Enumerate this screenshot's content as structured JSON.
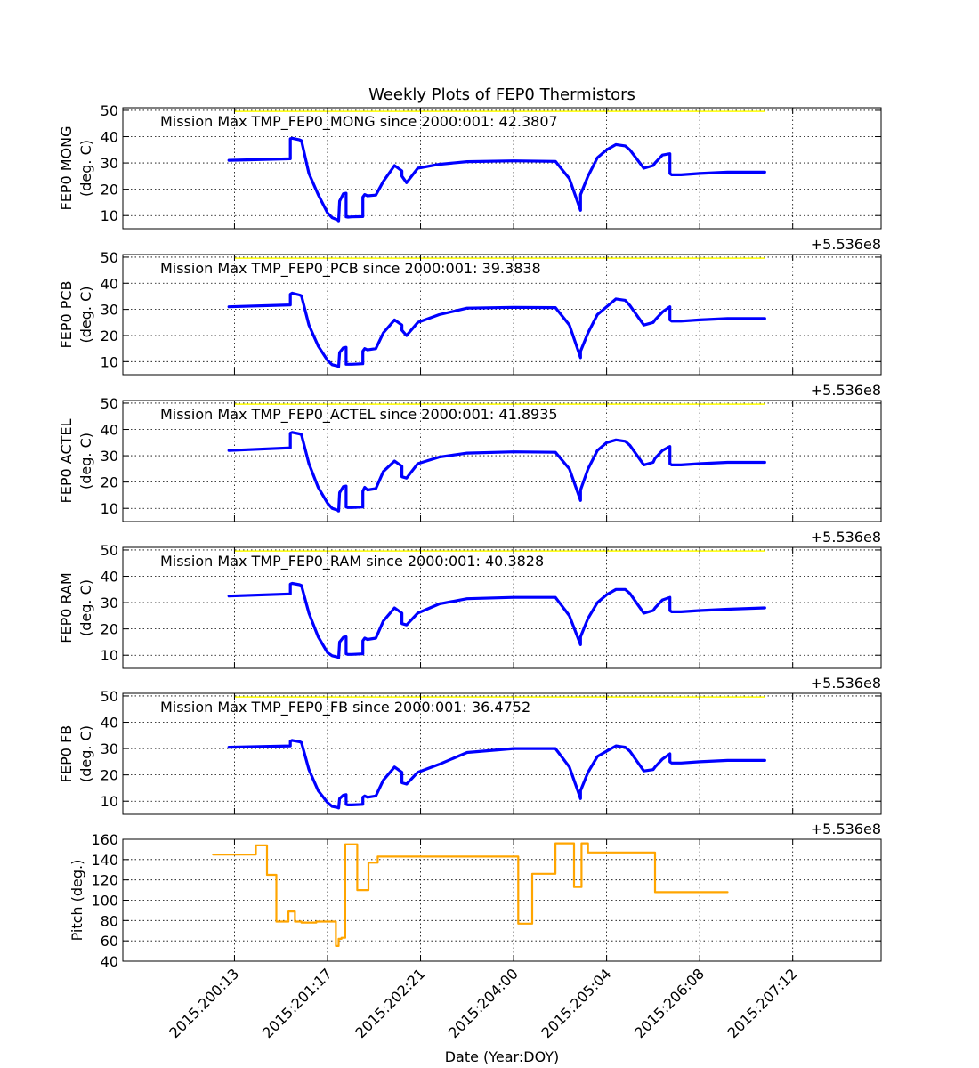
{
  "figure": {
    "title": "Weekly Plots of FEP0 Thermistors",
    "xlabel": "Date (Year:DOY)",
    "offset_label": "+5.536e8",
    "x_tick_labels": [
      "2015:200:13",
      "2015:201:17",
      "2015:202:21",
      "2015:204:00",
      "2015:205:04",
      "2015:206:08",
      "2015:207:12"
    ],
    "x_tick_values": [
      0,
      1,
      2,
      3,
      4,
      5,
      6
    ]
  },
  "colors": {
    "temperature": "#0000ff",
    "pitch": "#ffa500",
    "limit": "#ffff00",
    "grid": "#000000"
  },
  "chart_data": [
    {
      "type": "line",
      "ylabel": "FEP0 MONG\n(deg. C)",
      "annotation": "Mission Max TMP_FEP0_MONG since 2000:001: 42.3807",
      "ylim": [
        5,
        51
      ],
      "yticks": [
        10,
        20,
        30,
        40,
        50
      ],
      "limit_line": {
        "y": 49.6,
        "x_range": [
          0.0,
          5.7
        ]
      },
      "series": [
        {
          "x": [
            -0.06,
            0.6,
            0.6,
            0.62,
            0.7,
            0.72,
            0.8,
            0.9,
            1.0,
            1.05,
            1.12,
            1.12,
            1.13,
            1.17,
            1.2,
            1.2,
            1.22,
            1.26,
            1.38,
            1.38,
            1.4,
            1.43,
            1.52,
            1.6,
            1.72,
            1.8,
            1.8,
            1.85,
            1.97,
            2.2,
            2.5,
            3.0,
            3.45,
            3.6,
            3.72,
            3.72,
            3.8,
            3.9,
            4.0,
            4.1,
            4.2,
            4.25,
            4.4,
            4.5,
            4.52,
            4.6,
            4.68,
            4.68,
            4.7,
            4.8,
            5.0,
            5.3,
            5.7
          ],
          "values": [
            31.0,
            31.6,
            39.2,
            39.4,
            38.8,
            38.5,
            26,
            18,
            11,
            9.2,
            8.2,
            8.0,
            15.5,
            18.3,
            18.5,
            9.5,
            9.4,
            9.5,
            9.6,
            17,
            18,
            17.5,
            17.8,
            23,
            29,
            27,
            25,
            22.5,
            28,
            29.5,
            30.5,
            30.8,
            30.6,
            24,
            12,
            18,
            25,
            32,
            35,
            37,
            36.5,
            35,
            28,
            29,
            30,
            33,
            33.5,
            26,
            25.5,
            25.5,
            26,
            26.5,
            26.5
          ]
        }
      ]
    },
    {
      "type": "line",
      "ylabel": "FEP0 PCB\n(deg. C)",
      "annotation": "Mission Max TMP_FEP0_PCB since 2000:001: 39.3838",
      "ylim": [
        5,
        51
      ],
      "yticks": [
        10,
        20,
        30,
        40,
        50
      ],
      "limit_line": {
        "y": 49.6,
        "x_range": [
          0.0,
          5.7
        ]
      },
      "series": [
        {
          "x": [
            -0.06,
            0.6,
            0.6,
            0.62,
            0.7,
            0.72,
            0.8,
            0.9,
            1.0,
            1.05,
            1.12,
            1.12,
            1.13,
            1.17,
            1.2,
            1.2,
            1.22,
            1.26,
            1.38,
            1.38,
            1.4,
            1.43,
            1.52,
            1.6,
            1.72,
            1.8,
            1.8,
            1.85,
            1.97,
            2.2,
            2.5,
            3.0,
            3.45,
            3.6,
            3.72,
            3.72,
            3.8,
            3.9,
            4.0,
            4.1,
            4.2,
            4.25,
            4.4,
            4.5,
            4.52,
            4.6,
            4.68,
            4.68,
            4.7,
            4.8,
            5.0,
            5.3,
            5.7
          ],
          "values": [
            31.0,
            31.7,
            35.8,
            36.2,
            35.5,
            35.2,
            24,
            16,
            10.5,
            8.8,
            8.2,
            8.0,
            13.5,
            15.3,
            15.5,
            9.0,
            9.0,
            9.0,
            9.2,
            14,
            15,
            14.5,
            15,
            21,
            26,
            24,
            22,
            20,
            25,
            28,
            30.5,
            30.8,
            30.7,
            24,
            11.5,
            14,
            21,
            28,
            31,
            34,
            33.5,
            31.5,
            24,
            25,
            26,
            29,
            31,
            26,
            25.5,
            25.5,
            26,
            26.5,
            26.5
          ]
        }
      ]
    },
    {
      "type": "line",
      "ylabel": "FEP0 ACTEL\n(deg. C)",
      "annotation": "Mission Max TMP_FEP0_ACTEL since 2000:001: 41.8935",
      "ylim": [
        5,
        51
      ],
      "yticks": [
        10,
        20,
        30,
        40,
        50
      ],
      "limit_line": {
        "y": 49.6,
        "x_range": [
          0.0,
          5.7
        ]
      },
      "series": [
        {
          "x": [
            -0.06,
            0.6,
            0.6,
            0.62,
            0.7,
            0.72,
            0.8,
            0.9,
            1.0,
            1.05,
            1.12,
            1.12,
            1.13,
            1.17,
            1.2,
            1.2,
            1.22,
            1.26,
            1.38,
            1.38,
            1.4,
            1.43,
            1.52,
            1.6,
            1.72,
            1.8,
            1.8,
            1.85,
            1.97,
            2.2,
            2.5,
            3.0,
            3.45,
            3.6,
            3.72,
            3.72,
            3.8,
            3.9,
            4.0,
            4.1,
            4.2,
            4.25,
            4.4,
            4.5,
            4.52,
            4.6,
            4.68,
            4.68,
            4.7,
            4.8,
            5.0,
            5.3,
            5.7
          ],
          "values": [
            32.0,
            33.0,
            38.6,
            38.9,
            38.3,
            38.0,
            27,
            18,
            12,
            10,
            9.2,
            9.0,
            16,
            18.3,
            18.5,
            10.5,
            10.3,
            10.3,
            10.5,
            16.5,
            18,
            17,
            17.5,
            24,
            28,
            26,
            22,
            21.5,
            27,
            29.5,
            31.0,
            31.5,
            31.3,
            25,
            13,
            17,
            25,
            32,
            35,
            36,
            35.5,
            34,
            26.5,
            27.5,
            29,
            32,
            33.5,
            27,
            26.5,
            26.5,
            27,
            27.5,
            27.5
          ]
        }
      ]
    },
    {
      "type": "line",
      "ylabel": "FEP0 RAM\n(deg. C)",
      "annotation": "Mission Max TMP_FEP0_RAM since 2000:001: 40.3828",
      "ylim": [
        5,
        51
      ],
      "yticks": [
        10,
        20,
        30,
        40,
        50
      ],
      "limit_line": {
        "y": 49.6,
        "x_range": [
          0.0,
          5.7
        ]
      },
      "series": [
        {
          "x": [
            -0.06,
            0.6,
            0.6,
            0.62,
            0.7,
            0.72,
            0.8,
            0.9,
            1.0,
            1.05,
            1.12,
            1.12,
            1.13,
            1.17,
            1.2,
            1.2,
            1.22,
            1.26,
            1.38,
            1.38,
            1.4,
            1.43,
            1.52,
            1.6,
            1.72,
            1.8,
            1.8,
            1.85,
            1.97,
            2.2,
            2.5,
            3.0,
            3.45,
            3.6,
            3.72,
            3.72,
            3.8,
            3.9,
            4.0,
            4.1,
            4.2,
            4.25,
            4.4,
            4.5,
            4.52,
            4.6,
            4.68,
            4.68,
            4.7,
            4.8,
            5.0,
            5.3,
            5.7
          ],
          "values": [
            32.5,
            33.3,
            37.0,
            37.3,
            36.8,
            36.5,
            26,
            17,
            11,
            9.8,
            9.2,
            9.0,
            15,
            16.8,
            17,
            10.5,
            10.3,
            10.3,
            10.5,
            15.5,
            16.5,
            16,
            16.5,
            23,
            28,
            26,
            22,
            21.5,
            26,
            29.5,
            31.5,
            32.0,
            32.0,
            25,
            14,
            17,
            24,
            30,
            33,
            35,
            35,
            33.5,
            26,
            27,
            28,
            31,
            32,
            27,
            26.5,
            26.5,
            27,
            27.5,
            28
          ]
        }
      ]
    },
    {
      "type": "line",
      "ylabel": "FEP0 FB\n(deg. C)",
      "annotation": "Mission Max TMP_FEP0_FB since 2000:001: 36.4752",
      "ylim": [
        5,
        51
      ],
      "yticks": [
        10,
        20,
        30,
        40,
        50
      ],
      "limit_line": {
        "y": 49.6,
        "x_range": [
          0.0,
          5.7
        ]
      },
      "series": [
        {
          "x": [
            -0.06,
            0.6,
            0.6,
            0.62,
            0.7,
            0.72,
            0.8,
            0.9,
            1.0,
            1.05,
            1.12,
            1.12,
            1.13,
            1.17,
            1.2,
            1.2,
            1.22,
            1.26,
            1.38,
            1.38,
            1.4,
            1.43,
            1.52,
            1.6,
            1.72,
            1.8,
            1.8,
            1.85,
            1.97,
            2.2,
            2.5,
            3.0,
            3.45,
            3.6,
            3.72,
            3.72,
            3.8,
            3.9,
            4.0,
            4.1,
            4.2,
            4.25,
            4.4,
            4.5,
            4.52,
            4.6,
            4.68,
            4.68,
            4.7,
            4.8,
            5.0,
            5.3,
            5.7
          ],
          "values": [
            30.5,
            31.0,
            32.8,
            33.1,
            32.6,
            32.3,
            22,
            14,
            9.5,
            8.0,
            7.5,
            7.4,
            11,
            12.3,
            12.5,
            8.8,
            8.6,
            8.6,
            8.8,
            11.5,
            12,
            11.5,
            12,
            18,
            23,
            21,
            17,
            16.5,
            21,
            24,
            28.5,
            30.0,
            30.0,
            23,
            11,
            14,
            21,
            27,
            29,
            31,
            30.5,
            29,
            21.5,
            22,
            23,
            26,
            28,
            25,
            24.5,
            24.5,
            25,
            25.5,
            25.5
          ]
        }
      ]
    },
    {
      "type": "line",
      "ylabel": "Pitch (deg.)",
      "ylim": [
        40,
        160
      ],
      "yticks": [
        40,
        60,
        80,
        100,
        120,
        140,
        160
      ],
      "series": [
        {
          "x": [
            -0.23,
            0.23,
            0.23,
            0.35,
            0.35,
            0.45,
            0.45,
            0.58,
            0.58,
            0.65,
            0.65,
            0.72,
            0.72,
            0.88,
            0.88,
            1.09,
            1.09,
            1.12,
            1.12,
            1.15,
            1.15,
            1.19,
            1.19,
            1.21,
            1.21,
            1.32,
            1.32,
            1.44,
            1.44,
            1.54,
            1.54,
            1.63,
            1.63,
            3.05,
            3.05,
            3.2,
            3.2,
            3.45,
            3.45,
            3.65,
            3.65,
            3.73,
            3.73,
            3.8,
            3.8,
            3.94,
            3.94,
            4.52,
            4.52,
            5.3
          ],
          "values": [
            145,
            145,
            154,
            154,
            125,
            125,
            79,
            79,
            89,
            89,
            79,
            79,
            78,
            78,
            79,
            79,
            55,
            55,
            62,
            62,
            63,
            63,
            155,
            155,
            155,
            155,
            110,
            110,
            137,
            137,
            143,
            143,
            143,
            143,
            77,
            77,
            126,
            126,
            156,
            156,
            113,
            113,
            156,
            156,
            147,
            147,
            147,
            147,
            108,
            108
          ]
        }
      ]
    }
  ]
}
